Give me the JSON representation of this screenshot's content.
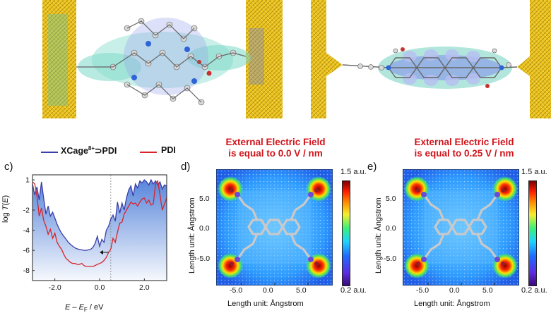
{
  "panel_c": {
    "label": "c)",
    "legend": {
      "series_a": "XCage",
      "series_a_sup": "8+",
      "series_a_suffix": "⊃PDI",
      "series_b": "PDI"
    },
    "ylabel": "log T(E)",
    "ylabel_main": "log",
    "ylabel_italic": "T",
    "ylabel_paren_open": "(",
    "ylabel_italic_e": "E",
    "ylabel_paren_close": ")",
    "xlabel_pre": "E",
    "xlabel_mid": " – ",
    "xlabel_e": "E",
    "xlabel_sub": "F",
    "xlabel_post": " / eV",
    "yticks": [
      "1",
      "-2",
      "-4",
      "-6",
      "-8"
    ],
    "xticks": [
      "-2.0",
      "0.0",
      "2.0"
    ],
    "colors": {
      "xcage": "#3b3fa8",
      "pdi": "#d9242b",
      "fill": "#4f7fd9"
    }
  },
  "chart_data": {
    "type": "line",
    "xlim": [
      -3.0,
      3.0
    ],
    "ylim": [
      -9,
      1.5
    ],
    "series": [
      {
        "name": "XCage8+⊃PDI",
        "x": [
          -3.0,
          -2.9,
          -2.8,
          -2.7,
          -2.6,
          -2.5,
          -2.4,
          -2.3,
          -2.2,
          -2.1,
          -2.0,
          -1.9,
          -1.8,
          -1.7,
          -1.6,
          -1.5,
          -1.4,
          -1.3,
          -1.2,
          -1.1,
          -1.0,
          -0.9,
          -0.8,
          -0.7,
          -0.6,
          -0.5,
          -0.4,
          -0.3,
          -0.2,
          -0.1,
          0.0,
          0.1,
          0.2,
          0.3,
          0.4,
          0.5,
          0.6,
          0.7,
          0.8,
          0.9,
          1.0,
          1.1,
          1.2,
          1.3,
          1.4,
          1.5,
          1.6,
          1.7,
          1.8,
          1.9,
          2.0,
          2.1,
          2.2,
          2.3,
          2.4,
          2.5,
          2.6,
          2.7,
          2.8,
          2.9,
          3.0
        ],
        "y": [
          0.6,
          -0.5,
          0.3,
          -1.0,
          0.8,
          -0.8,
          -2.4,
          -1.6,
          -2.6,
          -2.2,
          -2.8,
          -3.4,
          -3.9,
          -4.3,
          -4.6,
          -4.9,
          -5.2,
          -5.4,
          -5.6,
          -5.75,
          -5.85,
          -5.9,
          -5.95,
          -6.0,
          -6.0,
          -5.95,
          -5.9,
          -5.7,
          -5.3,
          -4.6,
          -5.6,
          -4.9,
          -5.2,
          -4.0,
          -3.6,
          -2.9,
          -2.5,
          -3.1,
          -1.2,
          -2.3,
          -1.3,
          -2.0,
          -0.8,
          0.0,
          0.4,
          -0.6,
          0.6,
          0.2,
          0.9,
          0.7,
          1.0,
          0.8,
          0.5,
          1.0,
          0.6,
          0.9,
          0.5,
          0.8,
          0.1,
          0.5,
          0.4
        ]
      },
      {
        "name": "PDI",
        "x": [
          -3.0,
          -2.9,
          -2.8,
          -2.7,
          -2.6,
          -2.5,
          -2.4,
          -2.3,
          -2.2,
          -2.1,
          -2.0,
          -1.9,
          -1.8,
          -1.7,
          -1.6,
          -1.5,
          -1.4,
          -1.3,
          -1.2,
          -1.1,
          -1.0,
          -0.9,
          -0.8,
          -0.7,
          -0.6,
          -0.5,
          -0.4,
          -0.3,
          -0.2,
          -0.1,
          0.0,
          0.1,
          0.2,
          0.3,
          0.4,
          0.5,
          0.6,
          0.7,
          0.8,
          0.9,
          1.0,
          1.1,
          1.2,
          1.3,
          1.4,
          1.5,
          1.6,
          1.7,
          1.8,
          1.9,
          2.0,
          2.1,
          2.2,
          2.3,
          2.4,
          2.5,
          2.6,
          2.7,
          2.8,
          2.9,
          3.0
        ],
        "y": [
          0.8,
          0.6,
          -0.6,
          -2.6,
          -1.8,
          -3.0,
          -3.6,
          -4.4,
          -3.9,
          -4.8,
          -4.3,
          -5.2,
          -5.6,
          -5.9,
          -6.4,
          -6.8,
          -7.0,
          -7.2,
          -7.3,
          -7.3,
          -7.4,
          -7.4,
          -7.3,
          -7.5,
          -7.6,
          -7.6,
          -7.6,
          -7.6,
          -7.5,
          -7.4,
          -7.3,
          -7.2,
          -7.0,
          -6.7,
          -6.2,
          -5.9,
          -4.8,
          -5.2,
          -4.2,
          -3.3,
          -3.2,
          -2.4,
          -2.0,
          -1.6,
          -1.2,
          -1.4,
          -1.3,
          -1.6,
          -1.2,
          -0.9,
          -0.8,
          -1.3,
          -1.0,
          -1.5,
          -1.4,
          0.6,
          0.9,
          -0.5,
          -2.0,
          -1.4,
          -0.8
        ]
      }
    ],
    "fermi_line_x": 0.5,
    "arrow": {
      "from_x": 0.4,
      "to_x": 0.0,
      "y": -6.2
    }
  },
  "panel_d": {
    "label": "d)",
    "title_line1": "External Electric Field",
    "title_line2": "is equal to 0.0 V / nm",
    "xlabel": "Length unit: Ångstrom",
    "ylabel": "Length unit: Ångstrom",
    "xticks": [
      "-5.0",
      "0.0",
      "5.0"
    ],
    "yticks": [
      "5.0",
      "0.0",
      "-5.0"
    ],
    "cbar_max": "1.5 a.u.",
    "cbar_min": "0.2 a.u."
  },
  "panel_e": {
    "label": "e)",
    "title_line1": "External Electric Field",
    "title_line2": "is equal to 0.25 V / nm",
    "xlabel": "Length unit: Ångstrom",
    "ylabel": "Length unit: Ångstrom",
    "xticks": [
      "-5.0",
      "0.0",
      "5.0"
    ],
    "yticks": [
      "5.0",
      "0.0",
      "-5.0"
    ],
    "cbar_max": "1.5 a.u.",
    "cbar_min": "0.2 a.u."
  }
}
